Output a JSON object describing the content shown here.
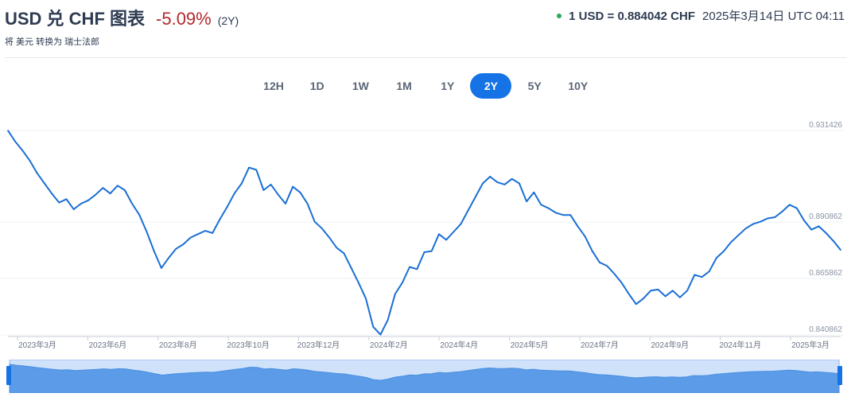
{
  "header": {
    "title": "USD 兑 CHF 图表",
    "change": "-5.09%",
    "period": "(2Y)",
    "subtitle": "将 美元 转换为 瑞士法郎",
    "rate": "1 USD = 0.884042 CHF",
    "timestamp": "2025年3月14日 UTC 04:11"
  },
  "tabs": [
    {
      "label": "12H",
      "active": false
    },
    {
      "label": "1D",
      "active": false
    },
    {
      "label": "1W",
      "active": false
    },
    {
      "label": "1M",
      "active": false
    },
    {
      "label": "1Y",
      "active": false
    },
    {
      "label": "2Y",
      "active": true
    },
    {
      "label": "5Y",
      "active": false
    },
    {
      "label": "10Y",
      "active": false
    }
  ],
  "colors": {
    "line": "#1a6fd4",
    "accent": "#1673e6",
    "negative": "#b3282d",
    "positive_dot": "#2aa85a",
    "navigator_fill": "#5b9be8",
    "navigator_bg": "#cfe2fa"
  },
  "chart_data": {
    "type": "line",
    "title": "USD 兑 CHF 图表",
    "ylim": [
      0.840862,
      0.931426
    ],
    "y_ticks": [
      "0.931426",
      "0.890862",
      "0.865862",
      "0.840862"
    ],
    "x_tick_labels": [
      "2023年3月",
      "2023年6月",
      "2023年8月",
      "2023年10月",
      "2023年12月",
      "2024年2月",
      "2024年4月",
      "2024年5月",
      "2024年7月",
      "2024年9月",
      "2024年11月",
      "2025年3月"
    ],
    "grid": true,
    "series": [
      {
        "values": [
          0.9314,
          0.9265,
          0.9225,
          0.918,
          0.9125,
          0.908,
          0.9035,
          0.8995,
          0.901,
          0.8965,
          0.899,
          0.9005,
          0.903,
          0.906,
          0.9035,
          0.907,
          0.905,
          0.899,
          0.894,
          0.8865,
          0.878,
          0.8705,
          0.875,
          0.879,
          0.881,
          0.884,
          0.8855,
          0.887,
          0.886,
          0.892,
          0.8975,
          0.9035,
          0.908,
          0.915,
          0.914,
          0.905,
          0.9075,
          0.903,
          0.899,
          0.9065,
          0.904,
          0.899,
          0.891,
          0.888,
          0.884,
          0.8795,
          0.877,
          0.8705,
          0.864,
          0.857,
          0.8445,
          0.841,
          0.8475,
          0.859,
          0.864,
          0.871,
          0.87,
          0.8775,
          0.878,
          0.8855,
          0.883,
          0.8865,
          0.89,
          0.896,
          0.902,
          0.908,
          0.911,
          0.9085,
          0.9075,
          0.91,
          0.908,
          0.9,
          0.904,
          0.8985,
          0.897,
          0.895,
          0.894,
          0.894,
          0.889,
          0.8845,
          0.878,
          0.873,
          0.8715,
          0.868,
          0.864,
          0.859,
          0.8545,
          0.857,
          0.8605,
          0.861,
          0.858,
          0.8605,
          0.8575,
          0.8605,
          0.8675,
          0.8665,
          0.869,
          0.875,
          0.878,
          0.882,
          0.885,
          0.888,
          0.89,
          0.891,
          0.8925,
          0.893,
          0.8955,
          0.8985,
          0.897,
          0.8915,
          0.8875,
          0.889,
          0.886,
          0.8825,
          0.8785
        ]
      }
    ]
  }
}
